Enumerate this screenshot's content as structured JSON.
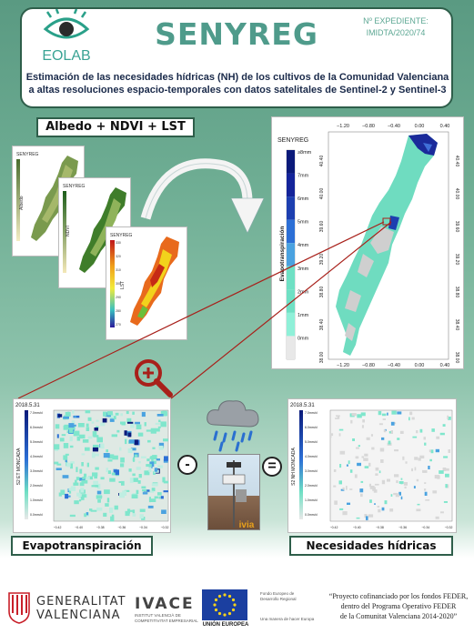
{
  "header": {
    "logo_text": "EOLAB",
    "title": "SENYREG",
    "expediente_label": "Nº EXPEDIENTE:",
    "expediente_value": "IMIDTA/2020/74",
    "description_line1": "Estimación de las necesidades hídricas (NH) de los cultivos de la Comunidad Valenciana",
    "description_line2": "a altas resoluciones espacio-temporales con datos satelitales de Sentinel-2 y Sentinel-3"
  },
  "inputs_label": "Albedo + NDVI + LST",
  "small_maps": {
    "map1_title": "SENYREG",
    "map1_axis": "Albedo",
    "map2_title": "SENYREG",
    "map2_axis": "NDVI",
    "map3_title": "SENYREG",
    "map3_axis": "LST",
    "map3_ticks": [
      "330",
      "320",
      "310",
      "300",
      "290",
      "280",
      "270"
    ]
  },
  "big_map": {
    "title": "SENYREG",
    "ylabel": "Evapotranspiración",
    "legend": [
      "≥8mm",
      "7mm",
      "6mm",
      "5mm",
      "4mm",
      "3mm",
      "2mm",
      "1mm",
      "0mm"
    ],
    "x_ticks": [
      "−1.20",
      "−0.80",
      "−0.40",
      "0.00",
      "0.40"
    ],
    "y_ticks_left": [
      "40.40",
      "40.00",
      "39.60",
      "39.20",
      "38.80",
      "38.40",
      "38.00"
    ],
    "y_ticks_right": [
      "40.40",
      "40.00",
      "39.60",
      "39.20",
      "38.80",
      "38.40",
      "38.00"
    ]
  },
  "zoom_left": {
    "date": "2018.5.31",
    "side_label": "S2 ET MONCADA",
    "legend": [
      "7.0mm/d",
      "6.0mm/d",
      "5.0mm/d",
      "4.0mm/d",
      "3.0mm/d",
      "2.0mm/d",
      "1.0mm/d",
      "0.0mm/d"
    ],
    "x_ticks": [
      "−0.42",
      "−0.40",
      "−0.38",
      "−0.36",
      "−0.34",
      "−0.32"
    ]
  },
  "zoom_right": {
    "date": "2018.5.31",
    "side_label": "S2 NH MONCADA",
    "legend": [
      "7.0mm/d",
      "6.0mm/d",
      "5.0mm/d",
      "4.0mm/d",
      "3.0mm/d",
      "2.0mm/d",
      "1.0mm/d",
      "0.0mm/d"
    ],
    "x_ticks": [
      "−0.42",
      "−0.40",
      "−0.38",
      "−0.36",
      "−0.34",
      "−0.32"
    ]
  },
  "operators": {
    "minus": "-",
    "equals": "="
  },
  "station_label": "ivia",
  "evap_label": "Evapotranspiración",
  "nh_label": "Necesidades hídricas",
  "footer": {
    "gv_line1": "GENERALITAT",
    "gv_line2": "VALENCIANA",
    "ivace_name": "IVACE",
    "ivace_sub1": "INSTITUT VALENCIÀ DE",
    "ivace_sub2": "COMPETITIVITAT EMPRESARIAL",
    "eu_fund1": "Fondo Europeo de",
    "eu_fund2": "Desarrollo Regional",
    "eu_motto": "Una manera de hacer Europa",
    "eu_name": "UNIÓN EUROPEA",
    "quote_line1": "“Proyecto cofinanciado por los fondos FEDER,",
    "quote_line2": "dentro del Programa Operativo FEDER",
    "quote_line3": "de la Comunitat Valenciana 2014-2020”"
  },
  "colors": {
    "accent": "#4f9b8b",
    "border": "#2e5e4a",
    "et_dark": "#0b1a7a",
    "et_mid": "#2c6fd6",
    "et_light": "#6fe0c4",
    "arrow_red": "#a8201a"
  }
}
